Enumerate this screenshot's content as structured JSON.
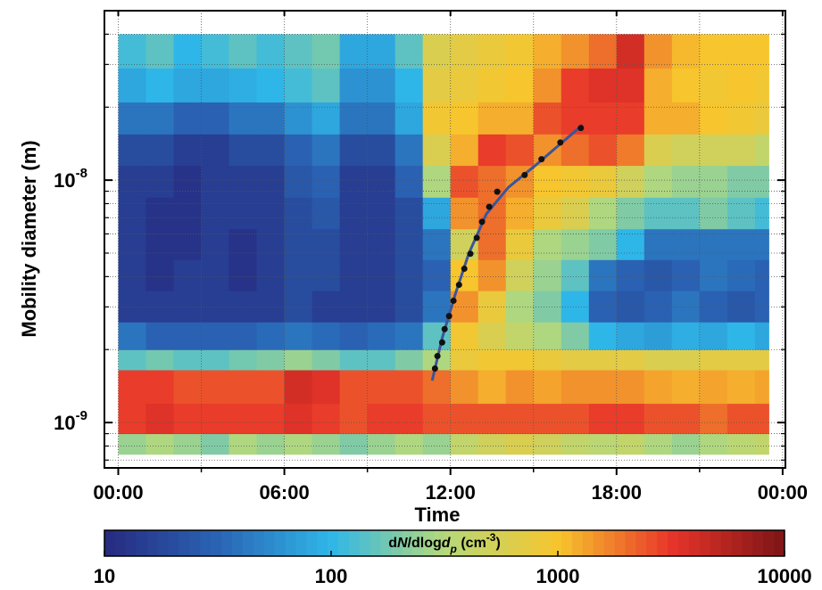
{
  "chart_data": {
    "type": "heatmap",
    "x_label": "Time",
    "y_label": "Mobility diameter  (m)",
    "xlim": [
      -0.5,
      24.1
    ],
    "xticks": [
      {
        "value": 0,
        "label": "00:00"
      },
      {
        "value": 6,
        "label": "06:00"
      },
      {
        "value": 12,
        "label": "12:00"
      },
      {
        "value": 18,
        "label": "18:00"
      },
      {
        "value": 24,
        "label": "00:00"
      }
    ],
    "x_minor_ticks": [
      3,
      9,
      15,
      21
    ],
    "y_scale": "log",
    "ylim": [
      6.5e-10,
      5e-08
    ],
    "yticks": [
      {
        "value": 1e-09,
        "label": "10",
        "exponent": "-9"
      },
      {
        "value": 1e-08,
        "label": "10",
        "exponent": "-8"
      }
    ],
    "y_minor_ticks": [
      7e-10,
      8e-10,
      9e-10,
      2e-09,
      3e-09,
      4e-09,
      5e-09,
      6e-09,
      7e-09,
      8e-09,
      9e-09,
      2e-08,
      3e-08,
      4e-08
    ],
    "grid": true,
    "x_edges": [
      0,
      1,
      2,
      3,
      4,
      5,
      6,
      7,
      8,
      9,
      10,
      11,
      12,
      13,
      14,
      15,
      16,
      17,
      18,
      19,
      20,
      21,
      22,
      23,
      23.5
    ],
    "y_edges": [
      7.4e-10,
      9e-10,
      1.2e-09,
      1.65e-09,
      2e-09,
      2.6e-09,
      3.5e-09,
      4.7e-09,
      6.3e-09,
      8.5e-09,
      1.15e-08,
      1.55e-08,
      2.1e-08,
      2.9e-08,
      4e-08
    ],
    "z": [
      [
        250,
        300,
        250,
        200,
        300,
        250,
        300,
        250,
        200,
        250,
        300,
        250,
        400,
        500,
        600,
        500,
        400,
        350,
        400,
        300,
        250,
        300,
        350,
        400
      ],
      [
        3000,
        3500,
        3000,
        3000,
        3000,
        3000,
        3500,
        3000,
        2500,
        3000,
        3000,
        2500,
        2500,
        2500,
        2500,
        2500,
        2500,
        3000,
        3000,
        2500,
        2500,
        2000,
        2500,
        2500
      ],
      [
        3000,
        3000,
        2500,
        2500,
        2500,
        2500,
        4000,
        3500,
        2500,
        2500,
        2500,
        2000,
        1500,
        1200,
        1500,
        1300,
        1500,
        1500,
        1500,
        1300,
        1200,
        1300,
        1200,
        1300
      ],
      [
        150,
        180,
        150,
        150,
        180,
        200,
        250,
        200,
        150,
        150,
        200,
        300,
        800,
        900,
        900,
        800,
        700,
        700,
        700,
        600,
        600,
        700,
        700,
        700
      ],
      [
        40,
        30,
        30,
        30,
        30,
        35,
        40,
        35,
        30,
        35,
        40,
        150,
        900,
        600,
        400,
        300,
        200,
        100,
        80,
        70,
        90,
        80,
        100,
        80
      ],
      [
        15,
        15,
        15,
        15,
        15,
        15,
        20,
        15,
        15,
        15,
        20,
        40,
        1500,
        800,
        300,
        200,
        100,
        30,
        25,
        30,
        40,
        30,
        25,
        30
      ],
      [
        15,
        12,
        15,
        15,
        12,
        15,
        20,
        20,
        15,
        15,
        20,
        30,
        1000,
        1500,
        500,
        250,
        150,
        40,
        30,
        25,
        30,
        40,
        35,
        30
      ],
      [
        15,
        12,
        12,
        15,
        12,
        15,
        20,
        20,
        15,
        15,
        20,
        40,
        500,
        2000,
        800,
        300,
        250,
        200,
        100,
        40,
        40,
        40,
        40,
        40
      ],
      [
        15,
        12,
        12,
        15,
        15,
        15,
        20,
        25,
        15,
        15,
        20,
        80,
        1500,
        2000,
        1200,
        800,
        600,
        300,
        200,
        150,
        150,
        200,
        150,
        120
      ],
      [
        15,
        15,
        12,
        15,
        15,
        15,
        25,
        30,
        15,
        15,
        30,
        300,
        2500,
        2000,
        1500,
        1000,
        900,
        800,
        500,
        300,
        250,
        250,
        200,
        200
      ],
      [
        20,
        20,
        15,
        15,
        20,
        20,
        30,
        40,
        20,
        20,
        40,
        600,
        1200,
        3000,
        2500,
        1500,
        2000,
        2500,
        1800,
        600,
        500,
        500,
        500,
        400
      ],
      [
        40,
        40,
        30,
        30,
        40,
        40,
        60,
        80,
        40,
        40,
        80,
        900,
        1000,
        1200,
        1200,
        2500,
        3000,
        3000,
        3000,
        1200,
        1200,
        1000,
        900,
        800
      ],
      [
        80,
        100,
        80,
        80,
        90,
        100,
        120,
        150,
        60,
        60,
        100,
        700,
        800,
        900,
        1000,
        1500,
        3000,
        3500,
        3500,
        1200,
        1000,
        900,
        1000,
        900
      ],
      [
        120,
        150,
        100,
        120,
        150,
        120,
        150,
        180,
        80,
        80,
        150,
        600,
        700,
        800,
        900,
        1200,
        1500,
        2000,
        4000,
        1500,
        1100,
        1000,
        1000,
        1000
      ]
    ],
    "colormap": [
      "#262a80",
      "#2a64b4",
      "#2fb6e8",
      "#b5d97b",
      "#f7c52d",
      "#e8352a",
      "#7d1416"
    ],
    "colorbar": {
      "label_parts": [
        "d",
        "N",
        "/dlog",
        "d",
        "p",
        " (cm",
        "-3",
        ")"
      ],
      "lim": [
        10,
        10000
      ],
      "ticks": [
        10,
        100,
        1000,
        10000
      ]
    },
    "growth_points": {
      "color": "#111111",
      "x": [
        11.44,
        11.53,
        11.7,
        11.79,
        11.95,
        12.11,
        12.31,
        12.5,
        12.72,
        12.95,
        13.14,
        13.4,
        13.69,
        14.68,
        15.29,
        15.97,
        16.71
      ],
      "y": [
        1.67e-09,
        1.88e-09,
        2.14e-09,
        2.43e-09,
        2.75e-09,
        3.18e-09,
        3.7e-09,
        4.31e-09,
        4.97e-09,
        5.78e-09,
        6.73e-09,
        7.76e-09,
        8.96e-09,
        1.05e-08,
        1.22e-08,
        1.43e-08,
        1.64e-08
      ]
    },
    "growth_fit": {
      "color": "#3b5599",
      "x": [
        11.34,
        11.7,
        12.18,
        12.66,
        13.3,
        14.1,
        15.07,
        16.03,
        16.77
      ],
      "y": [
        1.49e-09,
        2.23e-09,
        3.4e-09,
        4.97e-09,
        7.26e-09,
        9.35e-09,
        1.15e-08,
        1.43e-08,
        1.69e-08
      ]
    }
  }
}
